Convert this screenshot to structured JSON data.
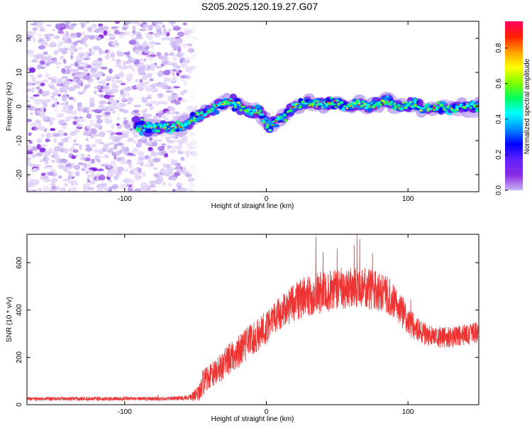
{
  "title": "S205.2025.120.19.27.G07",
  "colors": {
    "line": "#ee3333",
    "background": "#ffffff",
    "colormap": [
      "#ffffff",
      "#c9b4f2",
      "#8a2be2",
      "#6020ff",
      "#0000ff",
      "#0090ff",
      "#00ffff",
      "#00ff60",
      "#80ff00",
      "#ffff00",
      "#ffa000",
      "#ff2000",
      "#ff0060"
    ]
  },
  "chart_data": [
    {
      "type": "heatmap",
      "xlabel": "Height of straight line (km)",
      "ylabel": "Frequency (Hz)",
      "xlim": [
        -169,
        150
      ],
      "ylim": [
        -25,
        25
      ],
      "xticks": [
        -100,
        0,
        100
      ],
      "yticks": [
        -20,
        -10,
        0,
        10,
        20
      ],
      "noise_region_x": [
        -169,
        -55
      ],
      "ridge": {
        "x": [
          -92,
          -80,
          -70,
          -60,
          -55,
          -50,
          -45,
          -40,
          -35,
          -30,
          -25,
          -20,
          -15,
          -10,
          -5,
          0,
          3,
          5,
          8,
          12,
          15,
          20,
          25,
          30,
          35,
          40,
          45,
          50,
          55,
          60,
          65,
          70,
          75,
          80,
          85,
          90,
          95,
          100,
          105,
          110,
          115,
          120,
          125,
          130,
          135,
          140,
          145,
          150
        ],
        "frequency": [
          -6,
          -6,
          -6,
          -6,
          -5,
          -3,
          -2,
          -1,
          0,
          1,
          1.5,
          0.5,
          -1,
          -1.5,
          -1.5,
          -5,
          -6,
          -5,
          -4,
          -3,
          -2,
          0,
          1,
          1,
          1,
          0.5,
          1,
          1,
          0,
          0,
          1,
          0,
          0,
          1,
          2,
          0.5,
          0,
          0,
          1,
          -1,
          -0.5,
          -0.5,
          0,
          -1,
          -0.5,
          0,
          0,
          0
        ]
      },
      "colorbar": {
        "label": "Normalized spectral amplitude",
        "range": [
          0,
          0.95
        ],
        "ticks": [
          "0.0",
          "0.2",
          "0.4",
          "0.6",
          "0.8"
        ]
      }
    },
    {
      "type": "line",
      "xlabel": "Height of straight line (km)",
      "ylabel": "SNR (10 * v/v)",
      "xlim": [
        -169,
        150
      ],
      "ylim": [
        0,
        720
      ],
      "xticks": [
        -100,
        0,
        100
      ],
      "yticks": [
        0,
        200,
        400,
        600
      ],
      "series": [
        {
          "x": [
            -169,
            -150,
            -130,
            -110,
            -90,
            -70,
            -55,
            -48,
            -45,
            -40,
            -35,
            -30,
            -25,
            -20,
            -15,
            -10,
            -5,
            0,
            5,
            10,
            15,
            20,
            25,
            30,
            35,
            40,
            45,
            50,
            55,
            60,
            65,
            70,
            75,
            80,
            85,
            90,
            95,
            100,
            105,
            110,
            115,
            120,
            125,
            130,
            135,
            140,
            145,
            150
          ],
          "y": [
            25,
            25,
            25,
            25,
            25,
            25,
            30,
            45,
            90,
            120,
            140,
            170,
            200,
            220,
            250,
            280,
            300,
            330,
            360,
            390,
            410,
            430,
            450,
            460,
            470,
            475,
            480,
            485,
            490,
            490,
            490,
            490,
            485,
            480,
            465,
            440,
            400,
            360,
            320,
            300,
            290,
            285,
            285,
            285,
            290,
            295,
            300,
            305
          ],
          "noise": [
            8,
            8,
            8,
            8,
            8,
            8,
            10,
            35,
            55,
            60,
            60,
            65,
            65,
            70,
            70,
            70,
            70,
            75,
            70,
            70,
            75,
            80,
            85,
            85,
            90,
            90,
            90,
            90,
            90,
            90,
            90,
            90,
            85,
            85,
            80,
            75,
            70,
            60,
            55,
            50,
            45,
            45,
            45,
            45,
            45,
            45,
            45,
            45
          ],
          "peaks": [
            [
              35,
              710
            ],
            [
              40,
              645
            ],
            [
              50,
              660
            ],
            [
              62,
              675
            ],
            [
              64,
              720
            ],
            [
              66,
              700
            ],
            [
              75,
              640
            ]
          ]
        }
      ]
    }
  ]
}
